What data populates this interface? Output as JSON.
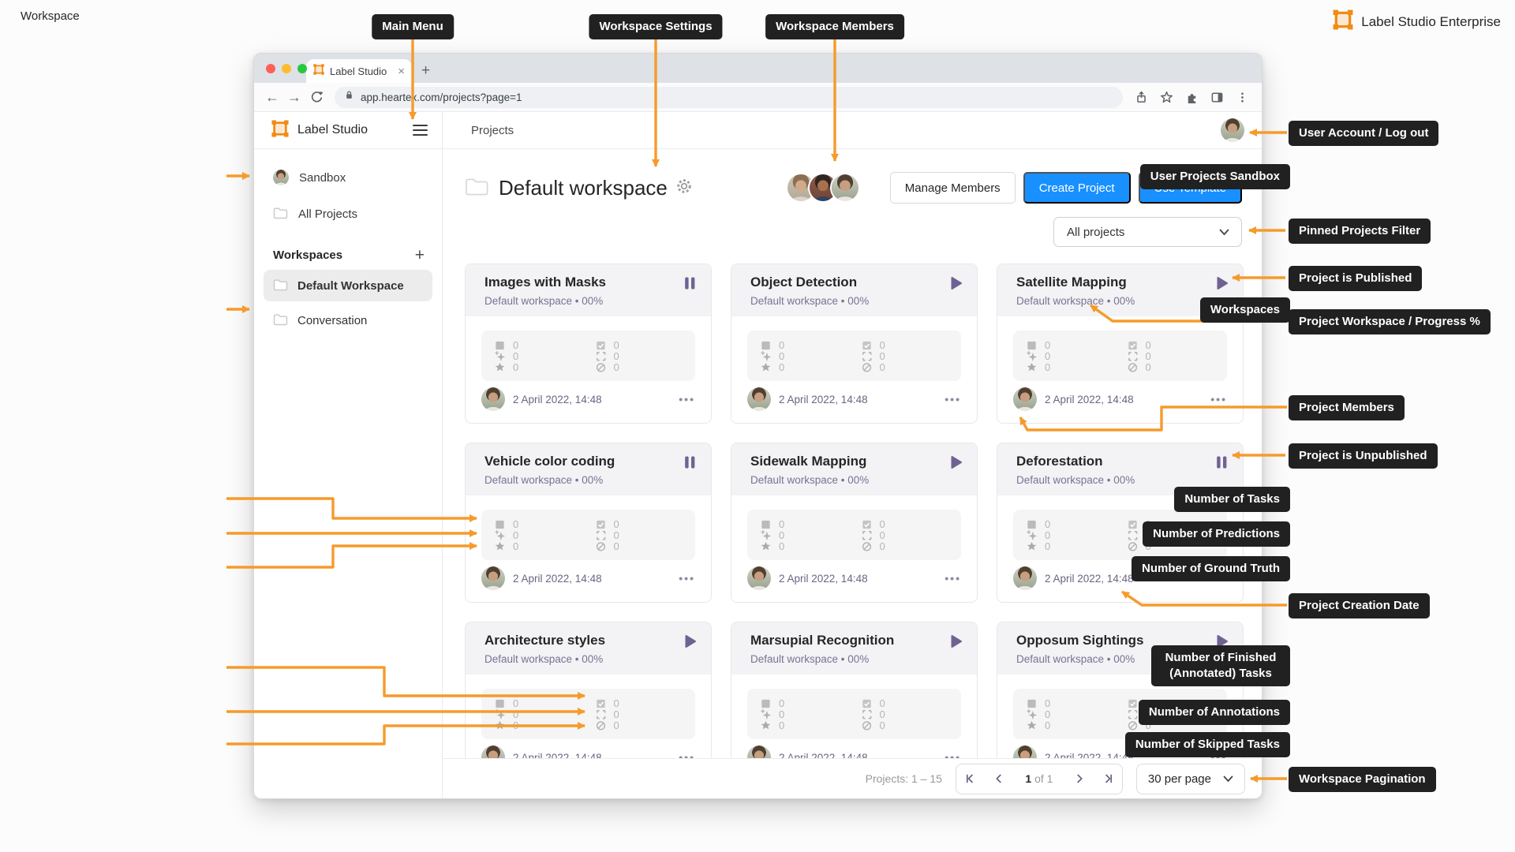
{
  "page": {
    "label": "Workspace",
    "brand": "Label Studio Enterprise"
  },
  "browser": {
    "tab_title": "Label Studio",
    "url": "app.heartex.com/projects?page=1"
  },
  "sidebar": {
    "app_name": "Label Studio",
    "items": [
      {
        "label": "Sandbox"
      },
      {
        "label": "All Projects"
      }
    ],
    "workspaces_header": "Workspaces",
    "workspaces": [
      {
        "label": "Default Workspace",
        "selected": true
      },
      {
        "label": "Conversation",
        "selected": false
      }
    ]
  },
  "header": {
    "nav_title": "Projects",
    "workspace_title": "Default workspace",
    "buttons": {
      "manage_members": "Manage Members",
      "create_project": "Create Project",
      "use_template": "Use Template"
    },
    "filter": "All projects"
  },
  "card_shared": {
    "subtitle": "Default workspace • 00%",
    "date": "2 April 2022, 14:48",
    "stats": {
      "tasks": "0",
      "predictions": "0",
      "ground_truth": "0",
      "finished": "0",
      "annotations": "0",
      "skipped": "0"
    }
  },
  "cards": [
    {
      "title": "Images with Masks",
      "status": "pause"
    },
    {
      "title": "Object Detection",
      "status": "play"
    },
    {
      "title": "Satellite Mapping",
      "status": "play"
    },
    {
      "title": "Vehicle color coding",
      "status": "pause"
    },
    {
      "title": "Sidewalk Mapping",
      "status": "play"
    },
    {
      "title": "Deforestation",
      "status": "pause"
    },
    {
      "title": "Architecture styles",
      "status": "play"
    },
    {
      "title": "Marsupial Recognition",
      "status": "play"
    },
    {
      "title": "Opposum Sightings",
      "status": "play"
    }
  ],
  "pagination": {
    "summary": "Projects: 1 – 15",
    "page": "1",
    "of": "of 1",
    "per_page": "30 per page"
  },
  "callouts": {
    "main_menu": "Main Menu",
    "workspace_settings": "Workspace Settings",
    "workspace_members": "Workspace Members",
    "user_account": "User Account / Log out",
    "pinned_filter": "Pinned Projects Filter",
    "published": "Project is Published",
    "workspace_progress": "Project Workspace / Progress %",
    "members": "Project Members",
    "unpublished": "Project is Unpublished",
    "creation_date": "Project Creation Date",
    "pagination_label": "Workspace Pagination",
    "sandbox": "User Projects Sandbox",
    "workspaces": "Workspaces",
    "tasks": "Number of Tasks",
    "predictions": "Number of Predictions",
    "ground_truth": "Number of Ground Truth",
    "finished": "Number of Finished (Annotated) Tasks",
    "annotations": "Number of Annotations",
    "skipped": "Number of Skipped Tasks"
  },
  "colors": {
    "accent_orange": "#F59B2B",
    "button_blue": "#1890FF",
    "status_purple": "#6F6293",
    "callout_black": "#212121"
  }
}
